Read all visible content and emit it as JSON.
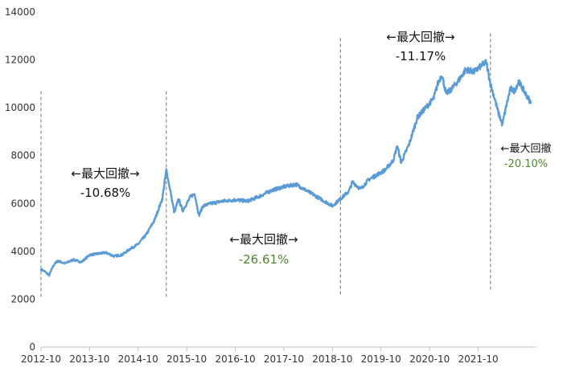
{
  "chart_data": {
    "type": "line",
    "grid": false,
    "ylim": [
      0,
      14000
    ],
    "y_ticks": [
      "0",
      "2000",
      "4000",
      "6000",
      "8000",
      "10000",
      "12000",
      "14000"
    ],
    "x_ticks": [
      "2012-10",
      "2013-10",
      "2014-10",
      "2015-10",
      "2016-10",
      "2017-10",
      "2018-10",
      "2019-10",
      "2020-10",
      "2021-10"
    ],
    "line_color": "#5b9bd5",
    "series": [
      {
        "x": [
          "2012-10",
          "2012-11",
          "2012-12",
          "2013-01",
          "2013-02",
          "2013-04",
          "2013-06",
          "2013-08",
          "2013-10",
          "2013-12",
          "2014-02",
          "2014-04",
          "2014-06",
          "2014-08",
          "2014-10",
          "2014-12",
          "2015-02",
          "2015-04",
          "2015-05",
          "2015-06",
          "2015-07",
          "2015-08",
          "2015-09",
          "2015-11",
          "2015-12",
          "2016-01",
          "2016-02",
          "2016-04",
          "2016-07",
          "2016-10",
          "2017-01",
          "2017-04",
          "2017-07",
          "2017-10",
          "2018-01",
          "2018-04",
          "2018-07",
          "2018-10",
          "2018-12",
          "2019-02",
          "2019-03",
          "2019-05",
          "2019-07",
          "2019-09",
          "2019-11",
          "2020-01",
          "2020-02",
          "2020-03",
          "2020-05",
          "2020-07",
          "2020-09",
          "2020-11",
          "2020-12",
          "2021-01",
          "2021-02",
          "2021-03",
          "2021-05",
          "2021-07",
          "2021-09",
          "2021-11",
          "2021-12",
          "2022-01",
          "2022-02",
          "2022-03",
          "2022-04",
          "2022-05",
          "2022-06",
          "2022-07",
          "2022-08",
          "2022-09",
          "2022-10",
          "2022-11"
        ],
        "values": [
          3250,
          3150,
          3000,
          3400,
          3600,
          3500,
          3650,
          3550,
          3850,
          3900,
          3950,
          3800,
          3850,
          4100,
          4300,
          4700,
          5300,
          6200,
          7400,
          6500,
          5600,
          6200,
          5700,
          6300,
          6400,
          5500,
          5900,
          6000,
          6100,
          6150,
          6100,
          6300,
          6550,
          6700,
          6800,
          6500,
          6200,
          5900,
          6200,
          6500,
          6900,
          6600,
          7000,
          7200,
          7400,
          7800,
          8400,
          7700,
          8500,
          9600,
          10000,
          10400,
          11000,
          11400,
          10600,
          10700,
          11100,
          11600,
          11500,
          11800,
          11900,
          11000,
          10400,
          9800,
          9300,
          10100,
          10800,
          10700,
          11100,
          10800,
          10500,
          10200
        ]
      }
    ],
    "event_lines": [
      {
        "x": "2012-10",
        "y_from": 2100,
        "y_to": 10700
      },
      {
        "x": "2015-05",
        "y_from": 2100,
        "y_to": 10700
      },
      {
        "x": "2018-12",
        "y_from": 2200,
        "y_to": 13000
      },
      {
        "x": "2022-01",
        "y_from": 2400,
        "y_to": 13200
      }
    ],
    "annotations": [
      {
        "label": "←最大回撤→",
        "value": "-10.68%",
        "value_color": "#111111"
      },
      {
        "label": "←最大回撤→",
        "value": "-26.61%",
        "value_color": "#548235"
      },
      {
        "label": "←最大回撤→",
        "value": "-11.17%",
        "value_color": "#111111"
      },
      {
        "label": "←最大回撤",
        "value": "-20.10%",
        "value_color": "#548235"
      }
    ]
  }
}
